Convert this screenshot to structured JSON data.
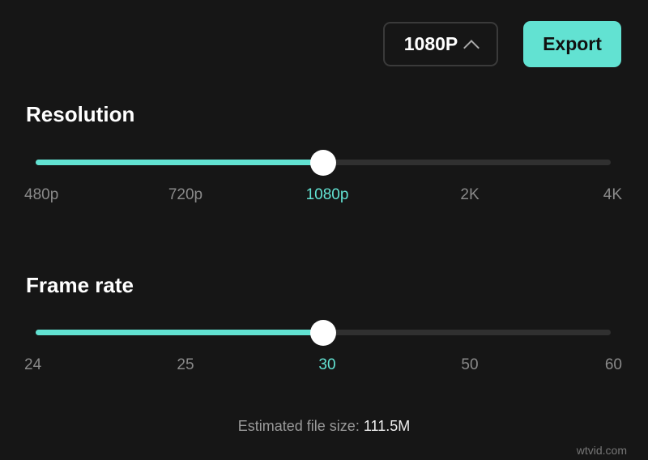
{
  "header": {
    "resolution_dropdown": "1080P",
    "export_label": "Export"
  },
  "accent_color": "#62e2d2",
  "resolution": {
    "title": "Resolution",
    "options": [
      "480p",
      "720p",
      "1080p",
      "2K",
      "4K"
    ],
    "selected_index": 2,
    "value_fraction": 0.5
  },
  "frame_rate": {
    "title": "Frame rate",
    "options": [
      "24",
      "25",
      "30",
      "50",
      "60"
    ],
    "selected_index": 2,
    "value_fraction": 0.5
  },
  "estimate": {
    "label": "Estimated file size:",
    "value": "111.5M"
  },
  "watermark": "wtvid.com"
}
